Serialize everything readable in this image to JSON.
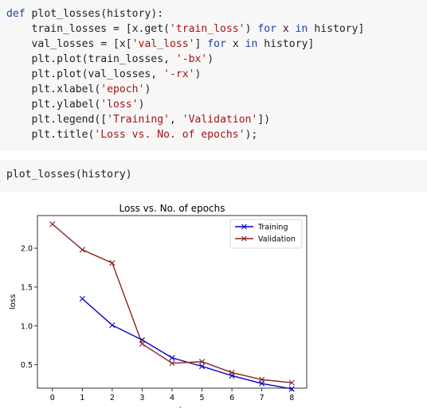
{
  "code_cell": {
    "lines": [
      [
        {
          "t": "def",
          "c": "kw"
        },
        {
          "t": " ",
          "c": "var"
        },
        {
          "t": "plot_losses",
          "c": "fn"
        },
        {
          "t": "(history):",
          "c": "var"
        }
      ],
      [
        {
          "t": "    train_losses = [x.get(",
          "c": "var"
        },
        {
          "t": "'train_loss'",
          "c": "str"
        },
        {
          "t": ") ",
          "c": "var"
        },
        {
          "t": "for",
          "c": "kw"
        },
        {
          "t": " x ",
          "c": "var"
        },
        {
          "t": "in",
          "c": "kw"
        },
        {
          "t": " history]",
          "c": "var"
        }
      ],
      [
        {
          "t": "    val_losses = [x[",
          "c": "var"
        },
        {
          "t": "'val_loss'",
          "c": "str"
        },
        {
          "t": "] ",
          "c": "var"
        },
        {
          "t": "for",
          "c": "kw"
        },
        {
          "t": " x ",
          "c": "var"
        },
        {
          "t": "in",
          "c": "kw"
        },
        {
          "t": " history]",
          "c": "var"
        }
      ],
      [
        {
          "t": "    plt.plot(train_losses, ",
          "c": "var"
        },
        {
          "t": "'-bx'",
          "c": "str"
        },
        {
          "t": ")",
          "c": "var"
        }
      ],
      [
        {
          "t": "    plt.plot(val_losses, ",
          "c": "var"
        },
        {
          "t": "'-rx'",
          "c": "str"
        },
        {
          "t": ")",
          "c": "var"
        }
      ],
      [
        {
          "t": "    plt.xlabel(",
          "c": "var"
        },
        {
          "t": "'epoch'",
          "c": "str"
        },
        {
          "t": ")",
          "c": "var"
        }
      ],
      [
        {
          "t": "    plt.ylabel(",
          "c": "var"
        },
        {
          "t": "'loss'",
          "c": "str"
        },
        {
          "t": ")",
          "c": "var"
        }
      ],
      [
        {
          "t": "    plt.legend([",
          "c": "var"
        },
        {
          "t": "'Training'",
          "c": "str"
        },
        {
          "t": ", ",
          "c": "var"
        },
        {
          "t": "'Validation'",
          "c": "str"
        },
        {
          "t": "])",
          "c": "var"
        }
      ],
      [
        {
          "t": "    plt.title(",
          "c": "var"
        },
        {
          "t": "'Loss vs. No. of epochs'",
          "c": "str"
        },
        {
          "t": ");",
          "c": "var"
        }
      ]
    ]
  },
  "call_cell": {
    "code": "plot_losses(history)"
  },
  "colors": {
    "keyword": "#1f3fa8",
    "string": "#a31515",
    "training": "#0000cc",
    "validation": "#8b2222"
  },
  "chart_data": {
    "type": "line",
    "title": "Loss vs. No. of epochs",
    "xlabel": "epoch",
    "ylabel": "loss",
    "xlim": [
      -0.5,
      8.5
    ],
    "ylim": [
      0.2,
      2.42
    ],
    "xticks": [
      0,
      1,
      2,
      3,
      4,
      5,
      6,
      7,
      8
    ],
    "yticks": [
      0.5,
      1.0,
      1.5,
      2.0
    ],
    "ytick_labels": [
      "0.5",
      "1.0",
      "1.5",
      "2.0"
    ],
    "legend_position": "top-right",
    "series": [
      {
        "name": "Training",
        "x": [
          1,
          2,
          3,
          4,
          5,
          6,
          7,
          8
        ],
        "values": [
          1.35,
          1.01,
          0.82,
          0.59,
          0.48,
          0.36,
          0.26,
          0.19
        ]
      },
      {
        "name": "Validation",
        "x": [
          0,
          1,
          2,
          3,
          4,
          5,
          6,
          7,
          8
        ],
        "values": [
          2.31,
          1.98,
          1.81,
          0.77,
          0.52,
          0.54,
          0.4,
          0.31,
          0.27
        ]
      }
    ]
  }
}
